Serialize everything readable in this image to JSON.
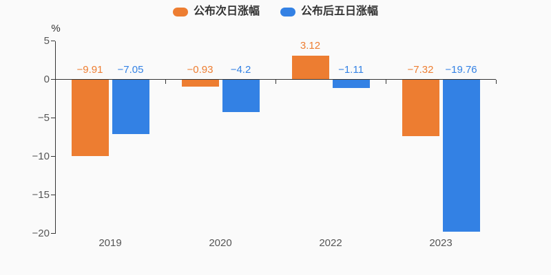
{
  "ui": {
    "unit_label": "%",
    "background": "#fafafa",
    "axis_color": "#333333",
    "tick_text_color": "#555555",
    "legend_text_color": "#333333"
  },
  "chart_data": {
    "type": "bar",
    "title": "",
    "categories": [
      "2019",
      "2020",
      "2022",
      "2023"
    ],
    "series": [
      {
        "name": "公布次日涨幅",
        "color": "#ed7d31",
        "values": [
          -9.91,
          -0.93,
          3.12,
          -7.32
        ],
        "labels": [
          "−9.91",
          "−0.93",
          "3.12",
          "−7.32"
        ]
      },
      {
        "name": "公布后五日涨幅",
        "color": "#3381e4",
        "values": [
          -7.05,
          -4.2,
          -1.11,
          -19.76
        ],
        "labels": [
          "−7.05",
          "−4.2",
          "−1.11",
          "−19.76"
        ]
      }
    ],
    "xlabel": "",
    "ylabel": "%",
    "ylim": [
      -20,
      5
    ],
    "yticks": [
      5,
      0,
      -5,
      -10,
      -15,
      -20
    ],
    "ytick_labels": [
      "5",
      "0",
      "−5",
      "−10",
      "−15",
      "−20"
    ],
    "legend_position": "top",
    "value_labels_shown": true,
    "grid": false
  }
}
